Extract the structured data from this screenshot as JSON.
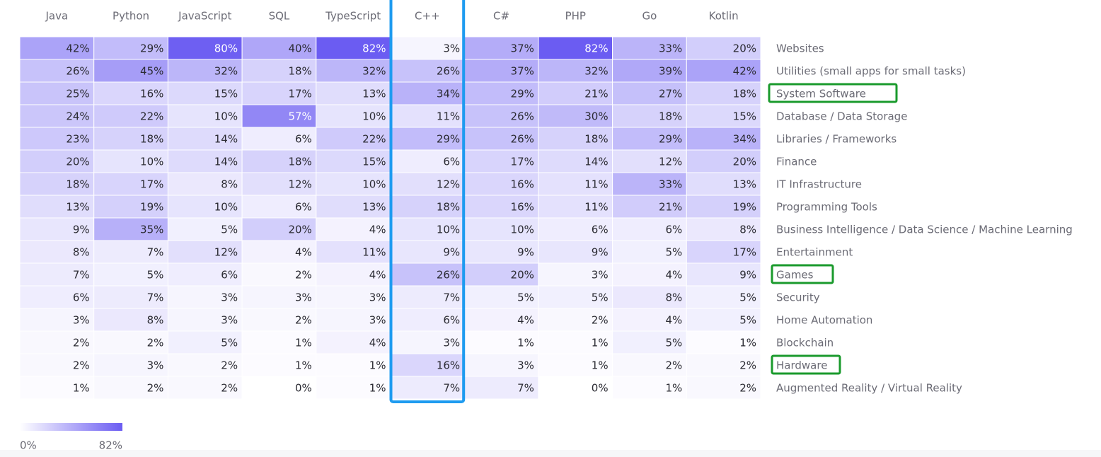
{
  "chart_data": {
    "type": "heatmap",
    "value_unit": "%",
    "columns": [
      "Java",
      "Python",
      "JavaScript",
      "SQL",
      "TypeScript",
      "C++",
      "C#",
      "PHP",
      "Go",
      "Kotlin"
    ],
    "rows": [
      "Websites",
      "Utilities (small apps for small tasks)",
      "System Software",
      "Database / Data Storage",
      "Libraries / Frameworks",
      "Finance",
      "IT Infrastructure",
      "Programming Tools",
      "Business Intelligence / Data Science / Machine Learning",
      "Entertainment",
      "Games",
      "Security",
      "Home Automation",
      "Blockchain",
      "Hardware",
      "Augmented Reality / Virtual Reality"
    ],
    "values": [
      [
        42,
        29,
        80,
        40,
        82,
        3,
        37,
        82,
        33,
        20
      ],
      [
        26,
        45,
        32,
        18,
        32,
        26,
        37,
        32,
        39,
        42
      ],
      [
        25,
        16,
        15,
        17,
        13,
        34,
        29,
        21,
        27,
        18
      ],
      [
        24,
        22,
        10,
        57,
        10,
        11,
        26,
        30,
        18,
        15
      ],
      [
        23,
        18,
        14,
        6,
        22,
        29,
        26,
        18,
        29,
        34
      ],
      [
        20,
        10,
        14,
        18,
        15,
        6,
        17,
        14,
        12,
        20
      ],
      [
        18,
        17,
        8,
        12,
        10,
        12,
        16,
        11,
        33,
        13
      ],
      [
        13,
        19,
        10,
        6,
        13,
        18,
        16,
        11,
        21,
        19
      ],
      [
        9,
        35,
        5,
        20,
        4,
        10,
        10,
        6,
        6,
        8
      ],
      [
        8,
        7,
        12,
        4,
        11,
        9,
        9,
        9,
        5,
        17
      ],
      [
        7,
        5,
        6,
        2,
        4,
        26,
        20,
        3,
        4,
        9
      ],
      [
        6,
        7,
        3,
        3,
        3,
        7,
        5,
        5,
        8,
        5
      ],
      [
        3,
        8,
        3,
        2,
        3,
        6,
        4,
        2,
        4,
        5
      ],
      [
        2,
        2,
        5,
        1,
        4,
        3,
        1,
        1,
        5,
        1
      ],
      [
        2,
        3,
        2,
        1,
        1,
        16,
        3,
        1,
        2,
        2
      ],
      [
        1,
        2,
        2,
        0,
        1,
        7,
        7,
        0,
        1,
        2
      ]
    ],
    "color_scale": {
      "min": 0,
      "max": 82,
      "min_label": "0%",
      "max_label": "82%",
      "min_color": "#ffffff",
      "max_color": "#6b5cf2"
    },
    "highlighted_column": "C++",
    "highlighted_rows": [
      "System Software",
      "Games",
      "Hardware"
    ],
    "column_highlight_color": "#1e9bf0",
    "row_highlight_color": "#1a9a2c"
  }
}
